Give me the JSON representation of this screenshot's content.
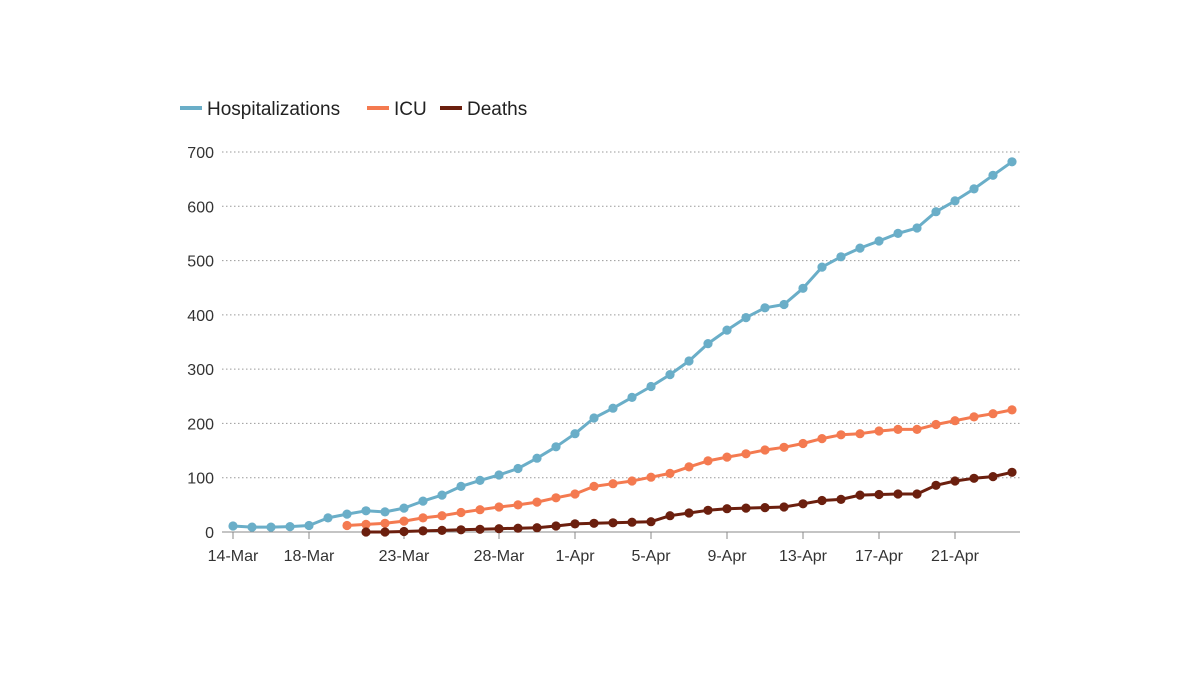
{
  "chart_data": {
    "type": "line",
    "x_start": "14-Mar",
    "x_tick_labels": [
      {
        "label": "14-Mar",
        "index": 0
      },
      {
        "label": "18-Mar",
        "index": 4
      },
      {
        "label": "23-Mar",
        "index": 9
      },
      {
        "label": "28-Mar",
        "index": 14
      },
      {
        "label": "1-Apr",
        "index": 18
      },
      {
        "label": "5-Apr",
        "index": 22
      },
      {
        "label": "9-Apr",
        "index": 26
      },
      {
        "label": "13-Apr",
        "index": 30
      },
      {
        "label": "17-Apr",
        "index": 34
      },
      {
        "label": "21-Apr",
        "index": 38
      }
    ],
    "ylim": [
      0,
      700
    ],
    "y_ticks": [
      0,
      100,
      200,
      300,
      400,
      500,
      600,
      700
    ],
    "grid": "horizontal dotted",
    "legend_position": "top-left",
    "series": [
      {
        "name": "Hospitalizations",
        "color": "#6aaec8",
        "start_index": 0,
        "values": [
          11,
          9,
          9,
          10,
          12,
          26,
          33,
          39,
          37,
          44,
          57,
          68,
          84,
          95,
          105,
          117,
          136,
          157,
          181,
          210,
          228,
          248,
          268,
          290,
          315,
          347,
          372,
          395,
          413,
          419,
          449,
          488,
          507,
          523,
          536,
          550,
          560,
          590,
          610,
          632,
          657,
          682
        ]
      },
      {
        "name": "ICU",
        "color": "#f47a50",
        "start_index": 6,
        "values": [
          12,
          14,
          16,
          20,
          26,
          30,
          36,
          41,
          46,
          50,
          55,
          63,
          70,
          84,
          89,
          94,
          101,
          108,
          120,
          131,
          138,
          144,
          151,
          156,
          163,
          172,
          179,
          181,
          186,
          189,
          189,
          198,
          205,
          212,
          218,
          225
        ]
      },
      {
        "name": "Deaths",
        "color": "#6b1f0e",
        "start_index": 7,
        "values": [
          0,
          0,
          1,
          2,
          3,
          4,
          5,
          6,
          7,
          8,
          11,
          15,
          16,
          17,
          18,
          19,
          30,
          35,
          40,
          43,
          44,
          45,
          46,
          52,
          58,
          60,
          68,
          69,
          70,
          70,
          86,
          94,
          99,
          102,
          110
        ]
      }
    ]
  }
}
